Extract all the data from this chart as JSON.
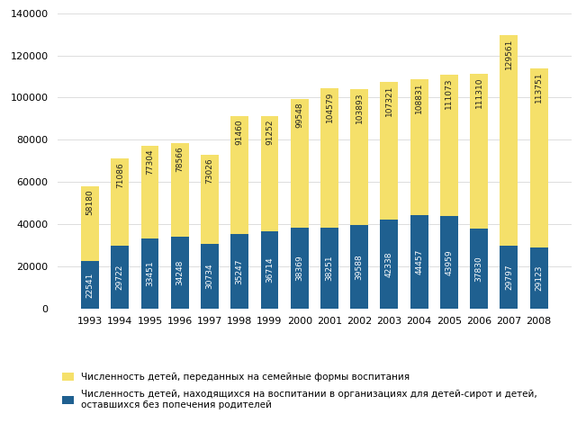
{
  "years": [
    1993,
    1994,
    1995,
    1996,
    1997,
    1998,
    1999,
    2000,
    2001,
    2002,
    2003,
    2004,
    2005,
    2006,
    2007,
    2008
  ],
  "yellow_values": [
    58180,
    71086,
    77304,
    78566,
    73026,
    91460,
    91252,
    99548,
    104579,
    103893,
    107321,
    108831,
    111073,
    111310,
    129561,
    113751
  ],
  "blue_values": [
    22541,
    29722,
    33451,
    34248,
    30734,
    35247,
    36714,
    38369,
    38251,
    39588,
    42338,
    44457,
    43959,
    37830,
    29797,
    29123
  ],
  "yellow_color": "#F5E06A",
  "blue_color": "#1F6090",
  "ylim": [
    0,
    140000
  ],
  "yticks": [
    0,
    20000,
    40000,
    60000,
    80000,
    100000,
    120000,
    140000
  ],
  "legend_yellow": "Численность детей, переданных на семейные формы воспитания",
  "legend_blue": "Численность детей, находящихся на воспитании в организациях для детей-сирот и детей,\nоставшихся без попечения родителей",
  "bar_width": 0.6,
  "fontsize_labels": 6.5,
  "background_color": "#FFFFFF",
  "grid_color": "#DDDDDD"
}
